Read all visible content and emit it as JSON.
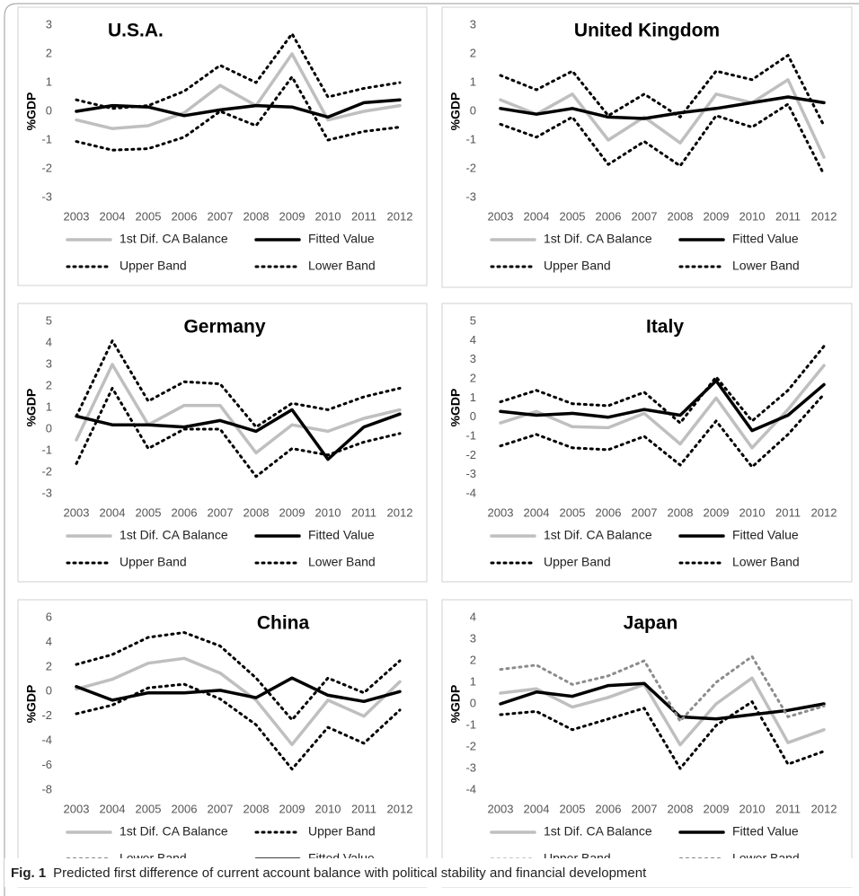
{
  "caption": {
    "label": "Fig. 1",
    "text": "Predicted first difference of current account balance with political stability and financial development"
  },
  "chart_data": [
    {
      "type": "line",
      "title": "U.S.A.",
      "y_label": "%GDP",
      "categories": [
        "2003",
        "2004",
        "2005",
        "2006",
        "2007",
        "2008",
        "2009",
        "2010",
        "2011",
        "2012"
      ],
      "ylim": [
        -3,
        3
      ],
      "yticks": [
        -3,
        -2,
        -1,
        0,
        1,
        2,
        3
      ],
      "series": [
        {
          "name": "1st Dif. CA Balance",
          "color": "#bfbfbf",
          "style": "solid",
          "values": [
            -0.3,
            -0.6,
            -0.5,
            -0.05,
            0.9,
            0.2,
            2.0,
            -0.3,
            0.0,
            0.2
          ]
        },
        {
          "name": "Fitted Value",
          "color": "#000000",
          "style": "solid",
          "values": [
            0.0,
            0.2,
            0.15,
            -0.15,
            0.05,
            0.2,
            0.15,
            -0.2,
            0.3,
            0.4
          ]
        },
        {
          "name": "Upper Band",
          "color": "#000000",
          "style": "dotted",
          "values": [
            0.4,
            0.1,
            0.2,
            0.7,
            1.6,
            1.0,
            2.7,
            0.5,
            0.8,
            1.0
          ]
        },
        {
          "name": "Lower Band",
          "color": "#000000",
          "style": "dotted",
          "values": [
            -1.05,
            -1.35,
            -1.3,
            -0.9,
            0.0,
            -0.5,
            1.2,
            -1.0,
            -0.7,
            -0.55
          ]
        }
      ]
    },
    {
      "type": "line",
      "title": "United Kingdom",
      "y_label": "%GDP",
      "categories": [
        "2003",
        "2004",
        "2005",
        "2006",
        "2007",
        "2008",
        "2009",
        "2010",
        "2011",
        "2012"
      ],
      "ylim": [
        -3,
        3
      ],
      "yticks": [
        -3,
        -2,
        -1,
        0,
        1,
        2,
        3
      ],
      "series": [
        {
          "name": "1st Dif. CA Balance",
          "color": "#bfbfbf",
          "style": "solid",
          "values": [
            0.4,
            -0.1,
            0.6,
            -1.0,
            -0.2,
            -1.1,
            0.6,
            0.3,
            1.1,
            -1.6
          ]
        },
        {
          "name": "Fitted Value",
          "color": "#000000",
          "style": "solid",
          "values": [
            0.1,
            -0.1,
            0.1,
            -0.2,
            -0.25,
            -0.05,
            0.1,
            0.3,
            0.5,
            0.3
          ]
        },
        {
          "name": "Upper Band",
          "color": "#000000",
          "style": "dotted",
          "values": [
            1.25,
            0.75,
            1.4,
            -0.15,
            0.6,
            -0.2,
            1.4,
            1.1,
            1.95,
            -0.5
          ]
        },
        {
          "name": "Lower Band",
          "color": "#000000",
          "style": "dotted",
          "values": [
            -0.45,
            -0.9,
            -0.2,
            -1.85,
            -1.05,
            -1.9,
            -0.15,
            -0.55,
            0.25,
            -2.2
          ]
        }
      ]
    },
    {
      "type": "line",
      "title": "Germany",
      "y_label": "%GDP",
      "categories": [
        "2003",
        "2004",
        "2005",
        "2006",
        "2007",
        "2008",
        "2009",
        "2010",
        "2011",
        "2012"
      ],
      "ylim": [
        -3,
        5
      ],
      "yticks": [
        -3,
        -2,
        -1,
        0,
        1,
        2,
        3,
        4,
        5
      ],
      "series": [
        {
          "name": "1st Dif. CA Balance",
          "color": "#bfbfbf",
          "style": "solid",
          "values": [
            -0.5,
            3.0,
            0.2,
            1.1,
            1.1,
            -1.1,
            0.2,
            -0.1,
            0.5,
            0.9
          ]
        },
        {
          "name": "Fitted Value",
          "color": "#000000",
          "style": "solid",
          "values": [
            0.6,
            0.2,
            0.2,
            0.1,
            0.4,
            -0.1,
            0.9,
            -1.4,
            0.1,
            0.7
          ]
        },
        {
          "name": "Upper Band",
          "color": "#000000",
          "style": "dotted",
          "values": [
            0.6,
            4.1,
            1.3,
            2.2,
            2.1,
            0.1,
            1.2,
            0.9,
            1.5,
            1.9
          ]
        },
        {
          "name": "Lower Band",
          "color": "#000000",
          "style": "dotted",
          "values": [
            -1.6,
            1.9,
            -0.9,
            0.0,
            0.0,
            -2.2,
            -0.9,
            -1.2,
            -0.6,
            -0.2
          ]
        }
      ]
    },
    {
      "type": "line",
      "title": "Italy",
      "y_label": "%GDP",
      "categories": [
        "2003",
        "2004",
        "2005",
        "2006",
        "2007",
        "2008",
        "2009",
        "2010",
        "2011",
        "2012"
      ],
      "ylim": [
        -4,
        5
      ],
      "yticks": [
        -4,
        -3,
        -2,
        -1,
        0,
        1,
        2,
        3,
        4,
        5
      ],
      "series": [
        {
          "name": "1st Dif. CA Balance",
          "color": "#bfbfbf",
          "style": "solid",
          "values": [
            -0.3,
            0.3,
            -0.5,
            -0.55,
            0.2,
            -1.4,
            1.0,
            -1.6,
            0.4,
            2.7
          ]
        },
        {
          "name": "Fitted Value",
          "color": "#000000",
          "style": "solid",
          "values": [
            0.3,
            0.1,
            0.2,
            0.0,
            0.4,
            0.1,
            1.9,
            -0.7,
            0.1,
            1.7
          ]
        },
        {
          "name": "Upper Band",
          "color": "#000000",
          "style": "dotted",
          "values": [
            0.8,
            1.4,
            0.7,
            0.6,
            1.3,
            -0.3,
            2.1,
            -0.2,
            1.4,
            3.7
          ]
        },
        {
          "name": "Lower Band",
          "color": "#000000",
          "style": "dotted",
          "values": [
            -1.5,
            -0.9,
            -1.6,
            -1.7,
            -1.0,
            -2.5,
            -0.2,
            -2.6,
            -0.9,
            1.2
          ]
        }
      ]
    },
    {
      "type": "line",
      "title": "China",
      "y_label": "%GDP",
      "categories": [
        "2003",
        "2004",
        "2005",
        "2006",
        "2007",
        "2008",
        "2009",
        "2010",
        "2011",
        "2012"
      ],
      "ylim": [
        -8,
        6
      ],
      "yticks": [
        -8,
        -6,
        -4,
        -2,
        0,
        2,
        4,
        6
      ],
      "series": [
        {
          "name": "1st Dif. CA Balance",
          "color": "#bfbfbf",
          "style": "solid",
          "values": [
            0.2,
            1.0,
            2.3,
            2.7,
            1.5,
            -0.7,
            -4.3,
            -0.7,
            -2.0,
            0.8
          ]
        },
        {
          "name": "Upper Band",
          "color": "#000000",
          "style": "dotted",
          "values": [
            2.2,
            3.0,
            4.4,
            4.8,
            3.7,
            1.1,
            -2.3,
            1.1,
            -0.1,
            2.5
          ]
        },
        {
          "name": "Lower Band",
          "color": "#000000",
          "style": "dotted",
          "values": [
            -1.8,
            -1.1,
            0.3,
            0.6,
            -0.6,
            -2.7,
            -6.3,
            -2.9,
            -4.2,
            -1.5
          ]
        },
        {
          "name": "Fitted Value",
          "color": "#000000",
          "style": "solid",
          "values": [
            0.4,
            -0.7,
            -0.1,
            -0.1,
            0.1,
            -0.5,
            1.1,
            -0.3,
            -0.8,
            0.0
          ]
        }
      ]
    },
    {
      "type": "line",
      "title": "Japan",
      "y_label": "%GDP",
      "categories": [
        "2003",
        "2004",
        "2005",
        "2006",
        "2007",
        "2008",
        "2009",
        "2010",
        "2011",
        "2012"
      ],
      "ylim": [
        -4,
        4
      ],
      "yticks": [
        -4,
        -3,
        -2,
        -1,
        0,
        1,
        2,
        3,
        4
      ],
      "series": [
        {
          "name": "1st Dif. CA Balance",
          "color": "#bfbfbf",
          "style": "solid",
          "values": [
            0.5,
            0.7,
            -0.15,
            0.3,
            0.9,
            -1.9,
            0.0,
            1.2,
            -1.8,
            -1.2
          ]
        },
        {
          "name": "Fitted Value",
          "color": "#000000",
          "style": "solid",
          "values": [
            0.0,
            0.55,
            0.35,
            0.85,
            0.95,
            -0.6,
            -0.7,
            -0.5,
            -0.3,
            0.0
          ]
        },
        {
          "name": "Upper Band",
          "color": "#8c8c8c",
          "style": "dotted",
          "values": [
            1.6,
            1.8,
            0.9,
            1.3,
            2.0,
            -0.8,
            1.0,
            2.2,
            -0.6,
            -0.1
          ]
        },
        {
          "name": "Lower Band",
          "color": "#000000",
          "style": "dotted",
          "values": [
            -0.5,
            -0.35,
            -1.2,
            -0.7,
            -0.2,
            -3.0,
            -1.0,
            0.1,
            -2.8,
            -2.2
          ]
        }
      ]
    }
  ]
}
